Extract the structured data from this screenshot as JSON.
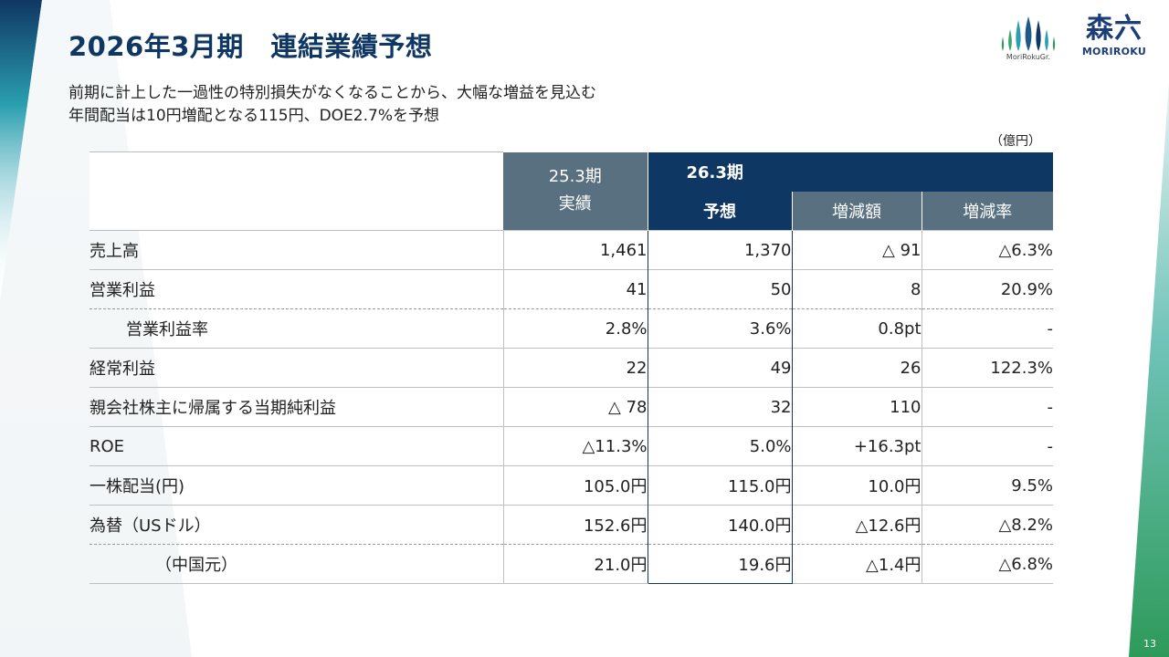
{
  "title": "2026年3月期　連結業績予想",
  "subtitle_lines": [
    "前期に計上した一過性の特別損失がなくなることから、大幅な増益を見込む",
    "年間配当は10円増配となる115円、DOE2.7%を予想"
  ],
  "unit": "（億円）",
  "logos": {
    "group_caption": "MoriRokuGr.",
    "brand_kanji": "森六",
    "brand_roman": "MORIROKU"
  },
  "page_number": "13",
  "table": {
    "headers": {
      "prev_period": "25.3期",
      "prev_sub": "実績",
      "cur_period": "26.3期",
      "cur_sub": "予想",
      "change_amount": "増減額",
      "change_rate": "増減率"
    },
    "rows": [
      {
        "label": "売上高",
        "prev": "1,461",
        "cur": "1,370",
        "diff": "△ 91",
        "rate": "△6.3%"
      },
      {
        "label": "営業利益",
        "prev": "41",
        "cur": "50",
        "diff": "8",
        "rate": "20.9%"
      },
      {
        "label": "営業利益率",
        "prev": "2.8%",
        "cur": "3.6%",
        "diff": "0.8pt",
        "rate": "-"
      },
      {
        "label": "経常利益",
        "prev": "22",
        "cur": "49",
        "diff": "26",
        "rate": "122.3%"
      },
      {
        "label": "親会社株主に帰属する当期純利益",
        "prev": "△ 78",
        "cur": "32",
        "diff": "110",
        "rate": "-"
      },
      {
        "label": "ROE",
        "prev": "△11.3%",
        "cur": "5.0%",
        "diff": "+16.3pt",
        "rate": "-"
      },
      {
        "label": "一株配当(円)",
        "prev": "105.0円",
        "cur": "115.0円",
        "diff": "10.0円",
        "rate": "9.5%"
      },
      {
        "label": "為替（USドル）",
        "prev": "152.6円",
        "cur": "140.0円",
        "diff": "△12.6円",
        "rate": "△8.2%"
      },
      {
        "label": "（中国元）",
        "prev": "21.0円",
        "cur": "19.6円",
        "diff": "△1.4円",
        "rate": "△6.8%"
      }
    ]
  },
  "colors": {
    "navy": "#0f3763",
    "slate": "#597080",
    "teal": "#2a9fb0",
    "green": "#2e9a5a"
  }
}
